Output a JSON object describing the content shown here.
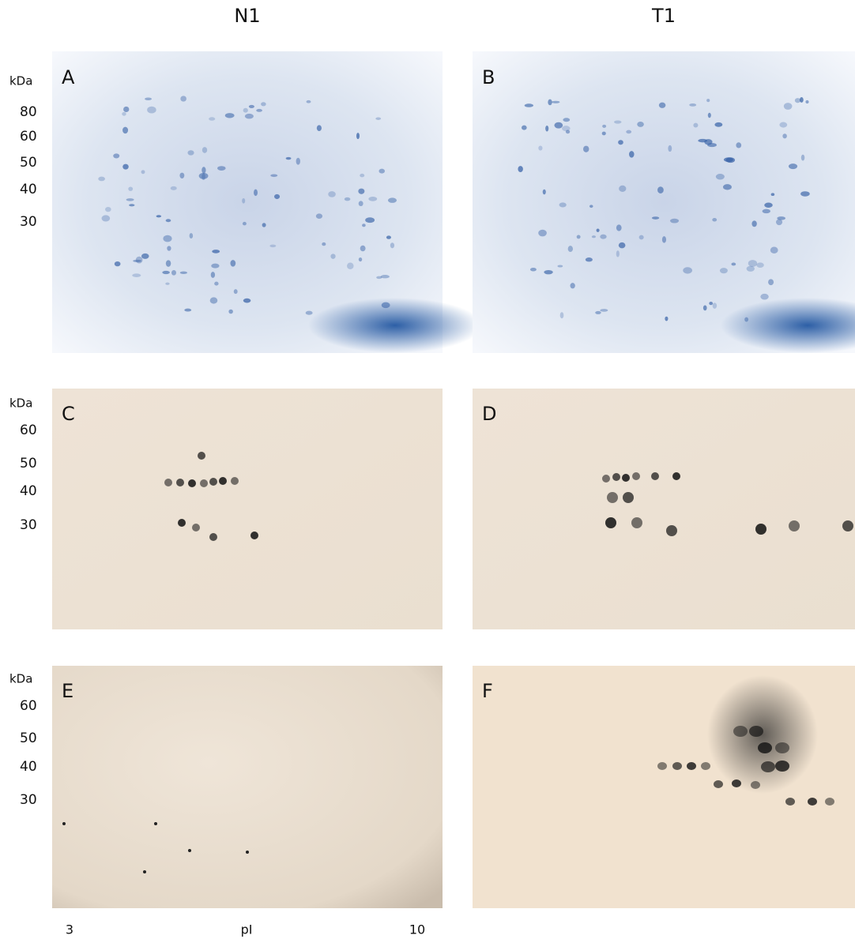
{
  "columns": [
    "N1",
    "T1"
  ],
  "rows": [
    {
      "unit": "kDa",
      "markers": [
        80,
        60,
        50,
        40,
        30
      ],
      "panels": [
        "A",
        "B"
      ]
    },
    {
      "unit": "kDa",
      "markers": [
        60,
        50,
        40,
        30
      ],
      "panels": [
        "C",
        "D"
      ]
    },
    {
      "unit": "kDa",
      "markers": [
        60,
        50,
        40,
        30
      ],
      "panels": [
        "E",
        "F"
      ]
    }
  ],
  "x_axis": {
    "min": 3,
    "label": "pI",
    "max": 10
  }
}
